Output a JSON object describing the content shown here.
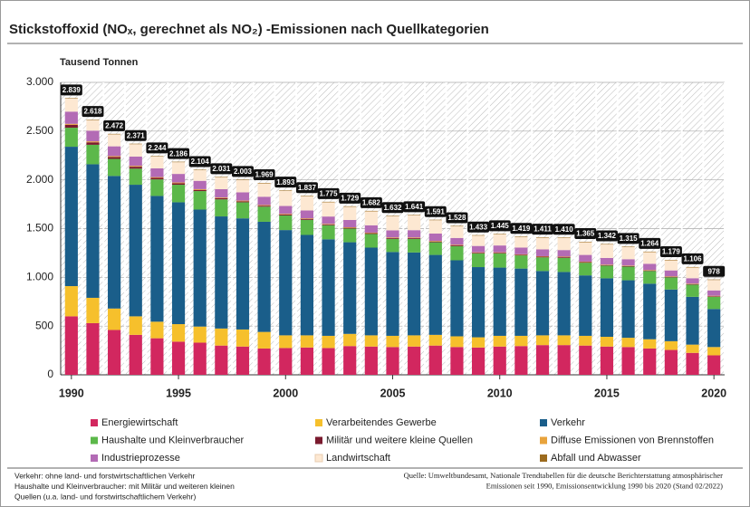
{
  "chart_data": {
    "type": "stacked-bar",
    "title": "Stickstoffoxid (NOₓ, gerechnet als NO₂) -Emissionen nach Quellkategorien",
    "y_label": "Tausend Tonnen",
    "x": [
      1990,
      1991,
      1992,
      1993,
      1994,
      1995,
      1996,
      1997,
      1998,
      1999,
      2000,
      2001,
      2002,
      2003,
      2004,
      2005,
      2006,
      2007,
      2008,
      2009,
      2010,
      2011,
      2012,
      2013,
      2014,
      2015,
      2016,
      2017,
      2018,
      2019,
      2020
    ],
    "xlim": [
      1989.5,
      2020.5
    ],
    "xticks": [
      1990,
      1995,
      2000,
      2005,
      2010,
      2015,
      2020
    ],
    "ylim": [
      0,
      3000
    ],
    "yticks": [
      0,
      {
        "value": 500,
        "label": "500"
      },
      {
        "value": 1000,
        "label": "1.000"
      },
      {
        "value": 1500,
        "label": "1.500"
      },
      {
        "value": 2000,
        "label": "2.000"
      },
      {
        "value": 2500,
        "label": "2.500"
      },
      {
        "value": 3000,
        "label": "3.000"
      }
    ],
    "grid": true,
    "series": [
      {
        "name": "Energiewirtschaft",
        "color": "#d2275f",
        "values": [
          600,
          530,
          460,
          410,
          375,
          340,
          330,
          300,
          290,
          270,
          275,
          280,
          275,
          295,
          290,
          285,
          290,
          300,
          285,
          280,
          290,
          295,
          305,
          305,
          300,
          290,
          285,
          270,
          255,
          225,
          200
        ]
      },
      {
        "name": "Verarbeitendes Gewerbe",
        "color": "#f6c02c",
        "values": [
          310,
          260,
          220,
          190,
          170,
          180,
          165,
          175,
          175,
          170,
          130,
          125,
          125,
          125,
          115,
          115,
          115,
          110,
          110,
          105,
          110,
          105,
          100,
          100,
          100,
          100,
          95,
          95,
          90,
          85,
          85
        ]
      },
      {
        "name": "Verkehr",
        "color": "#1a5e8a",
        "values": [
          1430,
          1370,
          1360,
          1350,
          1290,
          1250,
          1200,
          1150,
          1140,
          1130,
          1080,
          1030,
          990,
          940,
          900,
          860,
          850,
          820,
          780,
          720,
          700,
          690,
          660,
          650,
          620,
          600,
          590,
          570,
          530,
          490,
          390
        ]
      },
      {
        "name": "Haushalte und Kleinverbraucher",
        "color": "#5cb84a",
        "values": [
          195,
          200,
          175,
          165,
          170,
          180,
          190,
          175,
          165,
          155,
          150,
          155,
          145,
          140,
          140,
          135,
          140,
          130,
          145,
          140,
          145,
          135,
          140,
          145,
          130,
          130,
          140,
          130,
          125,
          125,
          125
        ]
      },
      {
        "name": "Militär und weitere kleine Quellen",
        "color": "#7a1a2e",
        "values": [
          30,
          25,
          20,
          20,
          15,
          15,
          12,
          12,
          10,
          10,
          10,
          10,
          8,
          8,
          8,
          8,
          8,
          8,
          8,
          7,
          7,
          7,
          7,
          7,
          7,
          6,
          6,
          6,
          6,
          6,
          6
        ]
      },
      {
        "name": "Diffuse Emissionen von Brennstoffen",
        "color": "#e8a33c",
        "values": [
          10,
          10,
          9,
          9,
          8,
          8,
          8,
          7,
          7,
          7,
          7,
          6,
          6,
          6,
          6,
          6,
          6,
          6,
          6,
          5,
          5,
          5,
          5,
          5,
          5,
          5,
          5,
          5,
          5,
          5,
          5
        ]
      },
      {
        "name": "Industrieprozesse",
        "color": "#b36bb5",
        "values": [
          125,
          110,
          100,
          95,
          90,
          88,
          85,
          85,
          85,
          85,
          80,
          80,
          75,
          75,
          75,
          73,
          75,
          75,
          70,
          65,
          70,
          68,
          70,
          68,
          68,
          68,
          65,
          63,
          60,
          55,
          55
        ]
      },
      {
        "name": "Landwirtschaft",
        "color": "#fde8d2",
        "values": [
          134,
          108,
          123,
          127,
          121,
          120,
          109,
          122,
          126,
          137,
          156,
          146,
          146,
          135,
          143,
          145,
          152,
          137,
          119,
          106,
          113,
          109,
          119,
          125,
          130,
          138,
          124,
          120,
          103,
          110,
          107
        ]
      },
      {
        "name": "Abfall und Abwasser",
        "color": "#9c6b1e",
        "values": [
          5,
          5,
          5,
          5,
          5,
          5,
          5,
          5,
          5,
          5,
          5,
          5,
          5,
          5,
          5,
          5,
          5,
          5,
          5,
          5,
          5,
          5,
          5,
          5,
          5,
          5,
          5,
          5,
          5,
          5,
          5
        ]
      }
    ],
    "totals": {
      "values": [
        2839,
        2618,
        2472,
        2371,
        2244,
        2186,
        2104,
        2031,
        2003,
        1969,
        1893,
        1837,
        1775,
        1729,
        1682,
        1632,
        1641,
        1591,
        1528,
        1433,
        1445,
        1419,
        1411,
        1410,
        1365,
        1342,
        1315,
        1264,
        1179,
        1106,
        978
      ],
      "value_labels": [
        "2.839",
        "2.618",
        "2.472",
        "2.371",
        "2.244",
        "2.186",
        "2.104",
        "2.031",
        "2.003",
        "1.969",
        "1.893",
        "1.837",
        "1.775",
        "1.729",
        "1.682",
        "1.632",
        "1.641",
        "1.591",
        "1.528",
        "1.433",
        "1.445",
        "1.419",
        "1.411",
        "1.410",
        "1.365",
        "1.342",
        "1.315",
        "1.264",
        "1.179",
        "1.106",
        "978"
      ]
    },
    "notes": [
      "Verkehr: ohne land- und forstwirtschaftlichen Verkehr",
      "Haushalte und Kleinverbraucher: mit Militär und weiteren kleinen",
      "Quellen (u.a. land- und forstwirtschaftlichem Verkehr)"
    ],
    "source": [
      "Quelle: Umweltbundesamt, Nationale Trendtabellen für die deutsche Berichterstattung atmosphärischer",
      "Emissionen seit 1990, Emissionsentwicklung 1990 bis 2020 (Stand 02/2022)"
    ]
  }
}
